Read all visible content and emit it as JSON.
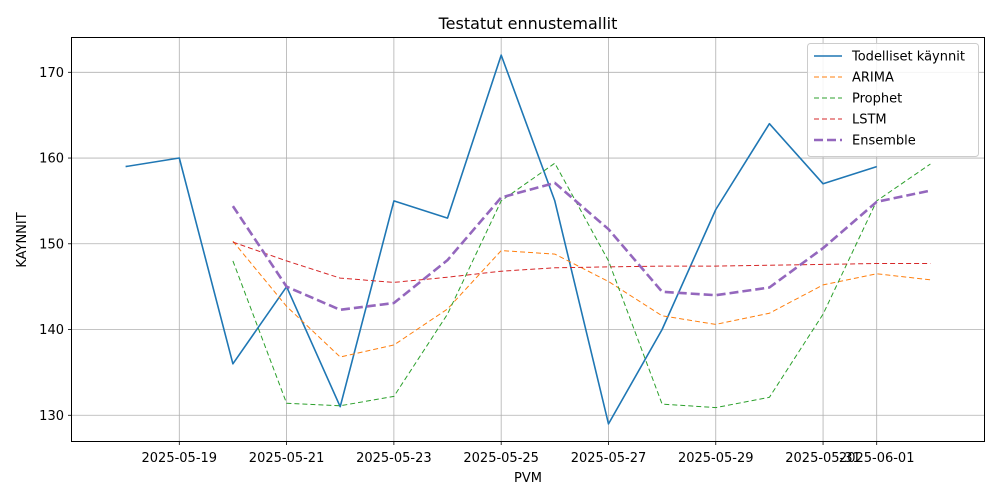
{
  "chart_data": {
    "type": "line",
    "title": "Testatut ennustemallit",
    "xlabel": "PVM",
    "ylabel": "KAYNNIT",
    "x_range": [
      "2025-05-17",
      "2025-06-03"
    ],
    "xlim": [
      "2025-05-17",
      "2025-06-03"
    ],
    "ylim": [
      127,
      174
    ],
    "grid": true,
    "legend_position": "top-right",
    "x_ticks": [
      "2025-05-19",
      "2025-05-21",
      "2025-05-23",
      "2025-05-25",
      "2025-05-27",
      "2025-05-29",
      "2025-05-31",
      "2025-06-01"
    ],
    "y_ticks": [
      130,
      140,
      150,
      160,
      170
    ],
    "series": [
      {
        "name": "Todelliset käynnit",
        "color": "#1f77b4",
        "style": "solid",
        "x": [
          "2025-05-18",
          "2025-05-19",
          "2025-05-20",
          "2025-05-21",
          "2025-05-22",
          "2025-05-23",
          "2025-05-24",
          "2025-05-25",
          "2025-05-26",
          "2025-05-27",
          "2025-05-28",
          "2025-05-29",
          "2025-05-30",
          "2025-05-31",
          "2025-06-01"
        ],
        "values": [
          159,
          160,
          136,
          145,
          131,
          155,
          153,
          172,
          155,
          129,
          140,
          154,
          164,
          157,
          159
        ]
      },
      {
        "name": "ARIMA",
        "color": "#ff7f0e",
        "style": "dashed",
        "x": [
          "2025-05-20",
          "2025-05-21",
          "2025-05-22",
          "2025-05-23",
          "2025-05-24",
          "2025-05-25",
          "2025-05-26",
          "2025-05-27",
          "2025-05-28",
          "2025-05-29",
          "2025-05-30",
          "2025-05-31",
          "2025-06-01",
          "2025-06-02"
        ],
        "values": [
          150.3,
          142.7,
          136.8,
          138.2,
          142.4,
          149.2,
          148.8,
          145.6,
          141.6,
          140.6,
          141.9,
          145.2,
          146.5,
          145.8
        ]
      },
      {
        "name": "Prophet",
        "color": "#2ca02c",
        "style": "dashed",
        "x": [
          "2025-05-20",
          "2025-05-21",
          "2025-05-22",
          "2025-05-23",
          "2025-05-24",
          "2025-05-25",
          "2025-05-26",
          "2025-05-27",
          "2025-05-28",
          "2025-05-29",
          "2025-05-30",
          "2025-05-31",
          "2025-06-01",
          "2025-06-02"
        ],
        "values": [
          148.0,
          131.4,
          131.1,
          132.2,
          141.8,
          155.0,
          159.4,
          148.0,
          131.3,
          130.9,
          132.1,
          141.8,
          155.0,
          159.3
        ]
      },
      {
        "name": "LSTM",
        "color": "#d62728",
        "style": "dashed",
        "x": [
          "2025-05-20",
          "2025-05-21",
          "2025-05-22",
          "2025-05-23",
          "2025-05-24",
          "2025-05-25",
          "2025-05-26",
          "2025-05-27",
          "2025-05-28",
          "2025-05-29",
          "2025-05-30",
          "2025-05-31",
          "2025-06-01",
          "2025-06-02"
        ],
        "values": [
          150.2,
          148.0,
          146.0,
          145.5,
          146.1,
          146.8,
          147.2,
          147.3,
          147.4,
          147.4,
          147.5,
          147.6,
          147.7,
          147.7
        ]
      },
      {
        "name": "Ensemble",
        "color": "#9467bd",
        "style": "dashed-thick",
        "x": [
          "2025-05-20",
          "2025-05-21",
          "2025-05-22",
          "2025-05-23",
          "2025-05-24",
          "2025-05-25",
          "2025-05-26",
          "2025-05-27",
          "2025-05-28",
          "2025-05-29",
          "2025-05-30",
          "2025-05-31",
          "2025-06-01",
          "2025-06-02"
        ],
        "values": [
          154.4,
          145.0,
          142.3,
          143.1,
          148.1,
          155.4,
          157.1,
          151.7,
          144.4,
          144.0,
          144.9,
          149.5,
          154.9,
          156.2
        ]
      }
    ]
  }
}
